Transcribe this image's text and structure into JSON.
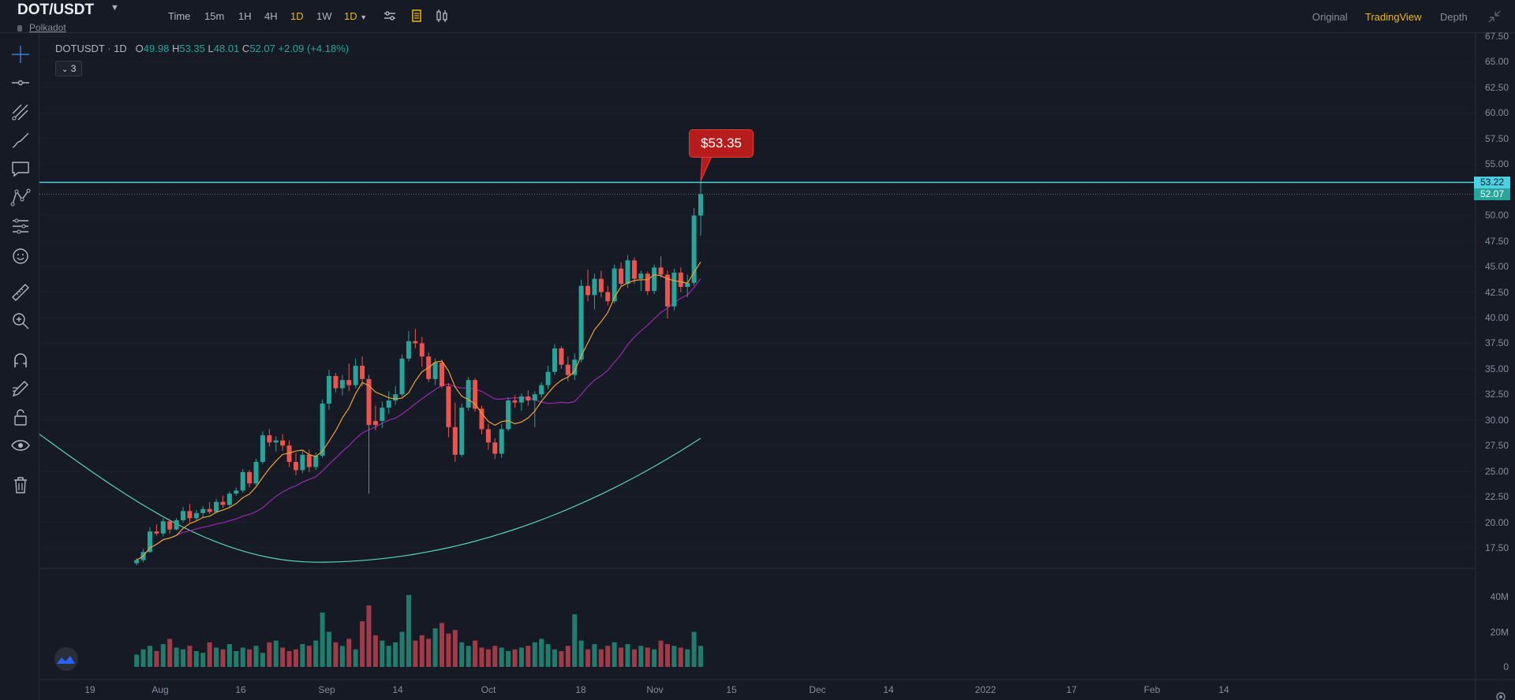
{
  "header": {
    "symbol": "DOT/USDT",
    "subname": "Polkadot",
    "timeframes": [
      "Time",
      "15m",
      "1H",
      "4H",
      "1D",
      "1W"
    ],
    "active_timeframe": "1D",
    "interval_select": "1D",
    "views": [
      "Original",
      "TradingView",
      "Depth"
    ],
    "active_view": "TradingView"
  },
  "legend": {
    "symbol": "DOTUSDT",
    "interval": "1D",
    "open_label": "O",
    "open": "49.98",
    "high_label": "H",
    "high": "53.35",
    "low_label": "L",
    "low": "48.01",
    "close_label": "C",
    "close": "52.07",
    "change": "+2.09 (+4.18%)",
    "indicator_count": "3"
  },
  "callout": {
    "text": "$53.35"
  },
  "price_axis": {
    "ticks": [
      "67.50",
      "65.00",
      "62.50",
      "60.00",
      "57.50",
      "55.00",
      "52.50",
      "50.00",
      "47.50",
      "45.00",
      "42.50",
      "40.00",
      "37.50",
      "35.00",
      "32.50",
      "30.00",
      "27.50",
      "25.00",
      "22.50",
      "20.00",
      "17.50"
    ],
    "badge_high": "53.22",
    "badge_last": "52.07"
  },
  "volume_axis": {
    "ticks": [
      "40M",
      "20M",
      "0"
    ]
  },
  "time_axis": {
    "ticks": [
      "19",
      "Aug",
      "16",
      "Sep",
      "14",
      "Oct",
      "18",
      "Nov",
      "15",
      "Dec",
      "14",
      "2022",
      "17",
      "Feb",
      "14"
    ]
  },
  "colors": {
    "up": "#26a69a",
    "down": "#ef5350",
    "accent": "#f0b90b",
    "hline": "#4dd0e1",
    "ma_short": "#f0a030",
    "ma_mid": "#9c27b0",
    "ma_long": "#5bd5b2"
  },
  "chart_data": {
    "type": "candlestick",
    "symbol": "DOTUSDT",
    "interval": "1D",
    "ylim": [
      15,
      68.5
    ],
    "horizontal_line": 53.22,
    "candles": [
      [
        16.0,
        16.5,
        15.8,
        16.3,
        "g"
      ],
      [
        16.3,
        17.4,
        16.1,
        17.1,
        "g"
      ],
      [
        17.1,
        19.5,
        17.0,
        19.1,
        "g"
      ],
      [
        19.1,
        19.8,
        18.7,
        18.9,
        "r"
      ],
      [
        18.9,
        20.4,
        18.6,
        20.1,
        "g"
      ],
      [
        20.1,
        20.3,
        18.9,
        19.3,
        "r"
      ],
      [
        19.3,
        20.4,
        19.2,
        20.2,
        "g"
      ],
      [
        20.2,
        21.5,
        20.0,
        21.1,
        "g"
      ],
      [
        21.1,
        21.8,
        20.0,
        20.4,
        "r"
      ],
      [
        20.4,
        21.2,
        20.1,
        20.9,
        "g"
      ],
      [
        20.9,
        21.6,
        20.5,
        21.3,
        "g"
      ],
      [
        21.3,
        22.0,
        20.8,
        21.0,
        "r"
      ],
      [
        21.0,
        22.3,
        20.9,
        22.0,
        "g"
      ],
      [
        22.0,
        22.6,
        21.4,
        21.7,
        "r"
      ],
      [
        21.7,
        23.0,
        21.5,
        22.8,
        "g"
      ],
      [
        22.8,
        23.4,
        22.6,
        23.1,
        "g"
      ],
      [
        23.1,
        25.2,
        22.9,
        24.9,
        "g"
      ],
      [
        24.9,
        25.1,
        23.4,
        23.8,
        "r"
      ],
      [
        23.8,
        26.2,
        23.6,
        25.9,
        "g"
      ],
      [
        25.9,
        28.9,
        25.7,
        28.5,
        "g"
      ],
      [
        28.5,
        29.1,
        27.4,
        27.8,
        "r"
      ],
      [
        27.8,
        28.4,
        26.9,
        28.0,
        "g"
      ],
      [
        28.0,
        28.6,
        27.0,
        27.5,
        "r"
      ],
      [
        27.5,
        28.0,
        25.4,
        25.9,
        "r"
      ],
      [
        25.9,
        26.8,
        24.6,
        25.1,
        "r"
      ],
      [
        25.1,
        27.0,
        24.8,
        26.6,
        "g"
      ],
      [
        26.6,
        27.1,
        24.9,
        25.4,
        "r"
      ],
      [
        25.4,
        26.8,
        25.1,
        26.5,
        "g"
      ],
      [
        26.5,
        32.0,
        26.3,
        31.6,
        "g"
      ],
      [
        31.6,
        34.9,
        31.0,
        34.3,
        "g"
      ],
      [
        34.3,
        34.6,
        32.7,
        33.1,
        "r"
      ],
      [
        33.1,
        34.4,
        32.4,
        33.9,
        "g"
      ],
      [
        33.9,
        35.5,
        32.8,
        33.4,
        "r"
      ],
      [
        33.4,
        36.0,
        33.1,
        35.3,
        "g"
      ],
      [
        35.3,
        36.2,
        33.3,
        34.0,
        "r"
      ],
      [
        34.0,
        34.4,
        22.8,
        29.5,
        "r"
      ],
      [
        29.5,
        31.4,
        29.0,
        29.9,
        "r"
      ],
      [
        29.9,
        31.8,
        29.2,
        31.2,
        "g"
      ],
      [
        31.2,
        32.8,
        30.6,
        31.9,
        "g"
      ],
      [
        31.9,
        33.3,
        31.5,
        32.5,
        "g"
      ],
      [
        32.5,
        36.4,
        32.3,
        36.0,
        "g"
      ],
      [
        36.0,
        38.7,
        35.7,
        37.7,
        "g"
      ],
      [
        37.7,
        38.9,
        37.0,
        37.5,
        "r"
      ],
      [
        37.5,
        38.1,
        35.2,
        36.2,
        "r"
      ],
      [
        36.2,
        36.6,
        33.7,
        34.0,
        "r"
      ],
      [
        34.0,
        36.0,
        33.4,
        35.6,
        "g"
      ],
      [
        35.6,
        35.9,
        33.1,
        33.3,
        "r"
      ],
      [
        33.3,
        33.6,
        28.3,
        29.3,
        "r"
      ],
      [
        29.3,
        31.7,
        25.9,
        26.6,
        "r"
      ],
      [
        26.6,
        31.6,
        26.4,
        31.2,
        "g"
      ],
      [
        31.2,
        34.2,
        30.9,
        33.9,
        "g"
      ],
      [
        33.9,
        34.1,
        30.8,
        31.1,
        "r"
      ],
      [
        31.1,
        31.4,
        28.6,
        29.1,
        "r"
      ],
      [
        29.1,
        29.6,
        27.1,
        27.8,
        "r"
      ],
      [
        27.8,
        28.2,
        26.2,
        26.7,
        "r"
      ],
      [
        26.7,
        29.6,
        26.3,
        29.1,
        "g"
      ],
      [
        29.1,
        32.2,
        28.9,
        31.9,
        "g"
      ],
      [
        31.9,
        32.4,
        31.2,
        31.7,
        "r"
      ],
      [
        31.7,
        32.6,
        30.9,
        32.3,
        "g"
      ],
      [
        32.3,
        32.9,
        31.4,
        31.9,
        "r"
      ],
      [
        31.9,
        32.8,
        29.3,
        32.5,
        "g"
      ],
      [
        32.5,
        33.7,
        32.2,
        33.4,
        "g"
      ],
      [
        33.4,
        35.3,
        33.0,
        34.7,
        "g"
      ],
      [
        34.7,
        37.4,
        34.4,
        37.0,
        "g"
      ],
      [
        37.0,
        37.2,
        35.0,
        35.4,
        "r"
      ],
      [
        35.4,
        36.2,
        33.8,
        34.4,
        "r"
      ],
      [
        34.4,
        36.5,
        33.9,
        35.9,
        "g"
      ],
      [
        35.9,
        43.7,
        35.6,
        43.1,
        "g"
      ],
      [
        43.1,
        44.7,
        41.6,
        42.2,
        "r"
      ],
      [
        42.2,
        44.3,
        40.8,
        43.8,
        "g"
      ],
      [
        43.8,
        44.6,
        42.0,
        42.5,
        "r"
      ],
      [
        42.5,
        43.1,
        41.2,
        41.6,
        "r"
      ],
      [
        41.6,
        45.2,
        41.4,
        44.8,
        "g"
      ],
      [
        44.8,
        45.4,
        43.0,
        43.3,
        "r"
      ],
      [
        43.3,
        46.1,
        42.9,
        45.6,
        "g"
      ],
      [
        45.6,
        45.9,
        43.3,
        43.8,
        "r"
      ],
      [
        43.8,
        44.6,
        42.6,
        44.3,
        "g"
      ],
      [
        44.3,
        44.5,
        42.2,
        42.6,
        "r"
      ],
      [
        42.6,
        45.2,
        42.3,
        44.9,
        "g"
      ],
      [
        44.9,
        46.0,
        43.9,
        44.2,
        "r"
      ],
      [
        44.2,
        44.6,
        39.9,
        41.1,
        "r"
      ],
      [
        41.1,
        44.8,
        40.7,
        44.4,
        "g"
      ],
      [
        44.4,
        44.9,
        42.5,
        43.0,
        "r"
      ],
      [
        43.0,
        44.2,
        42.0,
        43.4,
        "g"
      ],
      [
        43.4,
        50.7,
        43.1,
        49.98,
        "g"
      ],
      [
        49.98,
        53.35,
        48.01,
        52.07,
        "g"
      ]
    ],
    "volume_M": [
      7,
      10,
      12,
      9,
      13,
      16,
      11,
      10,
      12,
      9,
      8,
      14,
      11,
      10,
      13,
      9,
      11,
      10,
      12,
      8,
      14,
      15,
      11,
      9,
      10,
      13,
      12,
      15,
      31,
      20,
      14,
      12,
      16,
      10,
      26,
      35,
      18,
      15,
      12,
      14,
      20,
      41,
      15,
      18,
      16,
      22,
      25,
      19,
      21,
      14,
      12,
      15,
      11,
      10,
      12,
      11,
      9,
      10,
      11,
      12,
      14,
      16,
      13,
      10,
      9,
      12,
      30,
      15,
      10,
      13,
      10,
      12,
      14,
      11,
      13,
      10,
      12,
      11,
      10,
      15,
      13,
      12,
      11,
      10,
      20,
      12
    ]
  }
}
